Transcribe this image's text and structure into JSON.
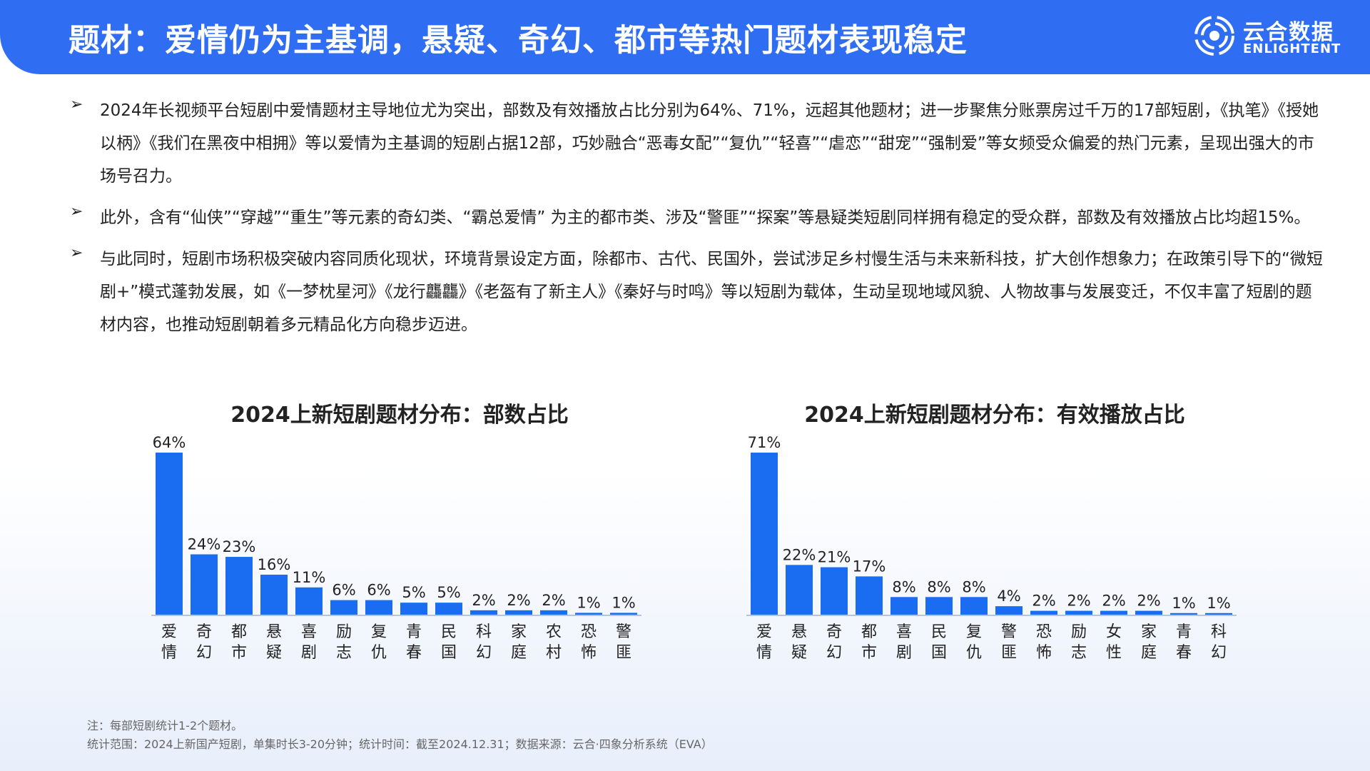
{
  "header": {
    "title": "题材：爱情仍为主基调，悬疑、奇幻、都市等热门题材表现稳定",
    "logo_cn": "云合数据",
    "logo_en": "ENLIGHTENT"
  },
  "bullets": [
    "2024年长视频平台短剧中爱情题材主导地位尤为突出，部数及有效播放占比分别为64%、71%，远超其他题材；进一步聚焦分账票房过千万的17部短剧，《执笔》《授她以柄》《我们在黑夜中相拥》等以爱情为主基调的短剧占据12部，巧妙融合“恶毒女配”“复仇”“轻喜”“虐恋”“甜宠”“强制爱”等女频受众偏爱的热门元素，呈现出强大的市场号召力。",
    "此外，含有“仙侠”“穿越”“重生”等元素的奇幻类、“霸总爱情” 为主的都市类、涉及“警匪”“探案”等悬疑类短剧同样拥有稳定的受众群，部数及有效播放占比均超15%。",
    "与此同时，短剧市场积极突破内容同质化现状，环境背景设定方面，除都市、古代、民国外，尝试涉足乡村慢生活与未来新科技，扩大创作想象力；在政策引导下的“微短剧+”模式蓬勃发展，如《一梦枕星河》《龙行龘龘》《老盔有了新主人》《秦好与时鸣》等以短剧为载体，生动呈现地域风貌、人物故事与发展变迁，不仅丰富了短剧的题材内容，也推动短剧朝着多元精品化方向稳步迈进。"
  ],
  "chart_data": [
    {
      "type": "bar",
      "title": "2024上新短剧题材分布：部数占比",
      "categories": [
        "爱情",
        "奇幻",
        "都市",
        "悬疑",
        "喜剧",
        "励志",
        "复仇",
        "青春",
        "民国",
        "科幻",
        "家庭",
        "农村",
        "恐怖",
        "警匪"
      ],
      "values": [
        64,
        24,
        23,
        16,
        11,
        6,
        6,
        5,
        5,
        2,
        2,
        2,
        1,
        1
      ],
      "labels": [
        "64%",
        "24%",
        "23%",
        "16%",
        "11%",
        "6%",
        "6%",
        "5%",
        "5%",
        "2%",
        "2%",
        "2%",
        "1%",
        "1%"
      ],
      "unit": "%",
      "ylim": [
        0,
        64
      ],
      "color": "#1a6cf0"
    },
    {
      "type": "bar",
      "title": "2024上新短剧题材分布：有效播放占比",
      "categories": [
        "爱情",
        "悬疑",
        "奇幻",
        "都市",
        "喜剧",
        "民国",
        "复仇",
        "警匪",
        "恐怖",
        "励志",
        "女性",
        "家庭",
        "青春",
        "科幻"
      ],
      "values": [
        71,
        22,
        21,
        17,
        8,
        8,
        8,
        4,
        2,
        2,
        2,
        2,
        1,
        1
      ],
      "labels": [
        "71%",
        "22%",
        "21%",
        "17%",
        "8%",
        "8%",
        "8%",
        "4%",
        "2%",
        "2%",
        "2%",
        "2%",
        "1%",
        "1%"
      ],
      "unit": "%",
      "ylim": [
        0,
        71
      ],
      "color": "#1a6cf0"
    }
  ],
  "footnote": {
    "line1": "注：每部短剧统计1-2个题材。",
    "line2": "统计范围：2024上新国产短剧，单集时长3-20分钟；统计时间：截至2024.12.31；数据来源：云合·四象分析系统（EVA）"
  }
}
